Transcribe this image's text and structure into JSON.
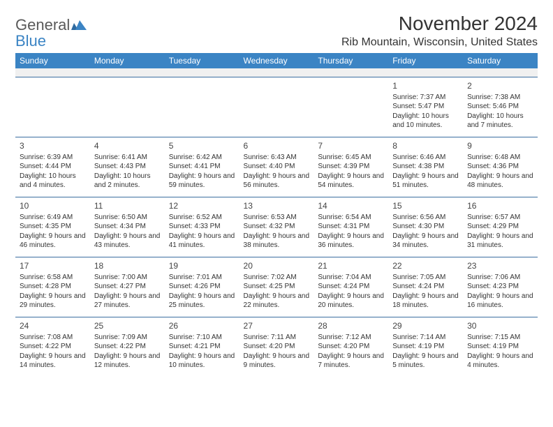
{
  "brand": {
    "general": "General",
    "blue": "Blue"
  },
  "title": "November 2024",
  "location": "Rib Mountain, Wisconsin, United States",
  "colors": {
    "header_bg": "#3b84c4",
    "header_fg": "#ffffff",
    "rule": "#3b6ea0",
    "spacer_bg": "#f0f0f0",
    "text": "#333333",
    "logo_gray": "#5a5a5a",
    "logo_blue": "#3b84c4"
  },
  "day_headers": [
    "Sunday",
    "Monday",
    "Tuesday",
    "Wednesday",
    "Thursday",
    "Friday",
    "Saturday"
  ],
  "weeks": [
    [
      null,
      null,
      null,
      null,
      null,
      {
        "n": "1",
        "sr": "7:37 AM",
        "ss": "5:47 PM",
        "dl": "10 hours and 10 minutes."
      },
      {
        "n": "2",
        "sr": "7:38 AM",
        "ss": "5:46 PM",
        "dl": "10 hours and 7 minutes."
      }
    ],
    [
      {
        "n": "3",
        "sr": "6:39 AM",
        "ss": "4:44 PM",
        "dl": "10 hours and 4 minutes."
      },
      {
        "n": "4",
        "sr": "6:41 AM",
        "ss": "4:43 PM",
        "dl": "10 hours and 2 minutes."
      },
      {
        "n": "5",
        "sr": "6:42 AM",
        "ss": "4:41 PM",
        "dl": "9 hours and 59 minutes."
      },
      {
        "n": "6",
        "sr": "6:43 AM",
        "ss": "4:40 PM",
        "dl": "9 hours and 56 minutes."
      },
      {
        "n": "7",
        "sr": "6:45 AM",
        "ss": "4:39 PM",
        "dl": "9 hours and 54 minutes."
      },
      {
        "n": "8",
        "sr": "6:46 AM",
        "ss": "4:38 PM",
        "dl": "9 hours and 51 minutes."
      },
      {
        "n": "9",
        "sr": "6:48 AM",
        "ss": "4:36 PM",
        "dl": "9 hours and 48 minutes."
      }
    ],
    [
      {
        "n": "10",
        "sr": "6:49 AM",
        "ss": "4:35 PM",
        "dl": "9 hours and 46 minutes."
      },
      {
        "n": "11",
        "sr": "6:50 AM",
        "ss": "4:34 PM",
        "dl": "9 hours and 43 minutes."
      },
      {
        "n": "12",
        "sr": "6:52 AM",
        "ss": "4:33 PM",
        "dl": "9 hours and 41 minutes."
      },
      {
        "n": "13",
        "sr": "6:53 AM",
        "ss": "4:32 PM",
        "dl": "9 hours and 38 minutes."
      },
      {
        "n": "14",
        "sr": "6:54 AM",
        "ss": "4:31 PM",
        "dl": "9 hours and 36 minutes."
      },
      {
        "n": "15",
        "sr": "6:56 AM",
        "ss": "4:30 PM",
        "dl": "9 hours and 34 minutes."
      },
      {
        "n": "16",
        "sr": "6:57 AM",
        "ss": "4:29 PM",
        "dl": "9 hours and 31 minutes."
      }
    ],
    [
      {
        "n": "17",
        "sr": "6:58 AM",
        "ss": "4:28 PM",
        "dl": "9 hours and 29 minutes."
      },
      {
        "n": "18",
        "sr": "7:00 AM",
        "ss": "4:27 PM",
        "dl": "9 hours and 27 minutes."
      },
      {
        "n": "19",
        "sr": "7:01 AM",
        "ss": "4:26 PM",
        "dl": "9 hours and 25 minutes."
      },
      {
        "n": "20",
        "sr": "7:02 AM",
        "ss": "4:25 PM",
        "dl": "9 hours and 22 minutes."
      },
      {
        "n": "21",
        "sr": "7:04 AM",
        "ss": "4:24 PM",
        "dl": "9 hours and 20 minutes."
      },
      {
        "n": "22",
        "sr": "7:05 AM",
        "ss": "4:24 PM",
        "dl": "9 hours and 18 minutes."
      },
      {
        "n": "23",
        "sr": "7:06 AM",
        "ss": "4:23 PM",
        "dl": "9 hours and 16 minutes."
      }
    ],
    [
      {
        "n": "24",
        "sr": "7:08 AM",
        "ss": "4:22 PM",
        "dl": "9 hours and 14 minutes."
      },
      {
        "n": "25",
        "sr": "7:09 AM",
        "ss": "4:22 PM",
        "dl": "9 hours and 12 minutes."
      },
      {
        "n": "26",
        "sr": "7:10 AM",
        "ss": "4:21 PM",
        "dl": "9 hours and 10 minutes."
      },
      {
        "n": "27",
        "sr": "7:11 AM",
        "ss": "4:20 PM",
        "dl": "9 hours and 9 minutes."
      },
      {
        "n": "28",
        "sr": "7:12 AM",
        "ss": "4:20 PM",
        "dl": "9 hours and 7 minutes."
      },
      {
        "n": "29",
        "sr": "7:14 AM",
        "ss": "4:19 PM",
        "dl": "9 hours and 5 minutes."
      },
      {
        "n": "30",
        "sr": "7:15 AM",
        "ss": "4:19 PM",
        "dl": "9 hours and 4 minutes."
      }
    ]
  ],
  "labels": {
    "sunrise": "Sunrise: ",
    "sunset": "Sunset: ",
    "daylight": "Daylight: "
  }
}
